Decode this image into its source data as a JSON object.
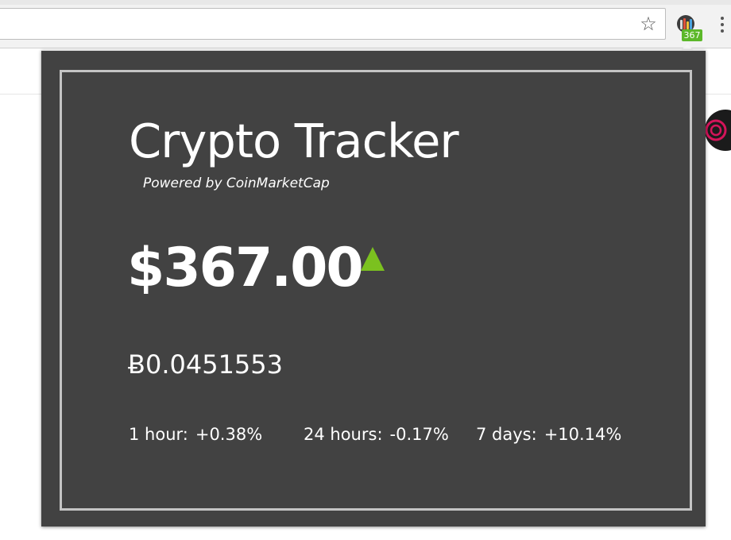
{
  "browser": {
    "star_glyph": "☆",
    "extension_icon": "crypto-tracker-icon",
    "extension_badge": "367",
    "menu_icon": "vertical-dots-icon"
  },
  "popup": {
    "title": "Crypto Tracker",
    "subtitle": "Powered by CoinMarketCap",
    "price": "$367.00",
    "trend": "up",
    "trend_color": "#7bc11f",
    "btc_price": "Ƀ0.0451553",
    "changes": [
      {
        "label": "1 hour:",
        "value": "+0.38%"
      },
      {
        "label": "24 hours:",
        "value": "-0.17%"
      },
      {
        "label": "7 days:",
        "value": "+10.14%"
      }
    ]
  },
  "colors": {
    "popup_background": "#424242",
    "frame_border": "#c4c4c4",
    "badge_background": "#5cb82a"
  }
}
